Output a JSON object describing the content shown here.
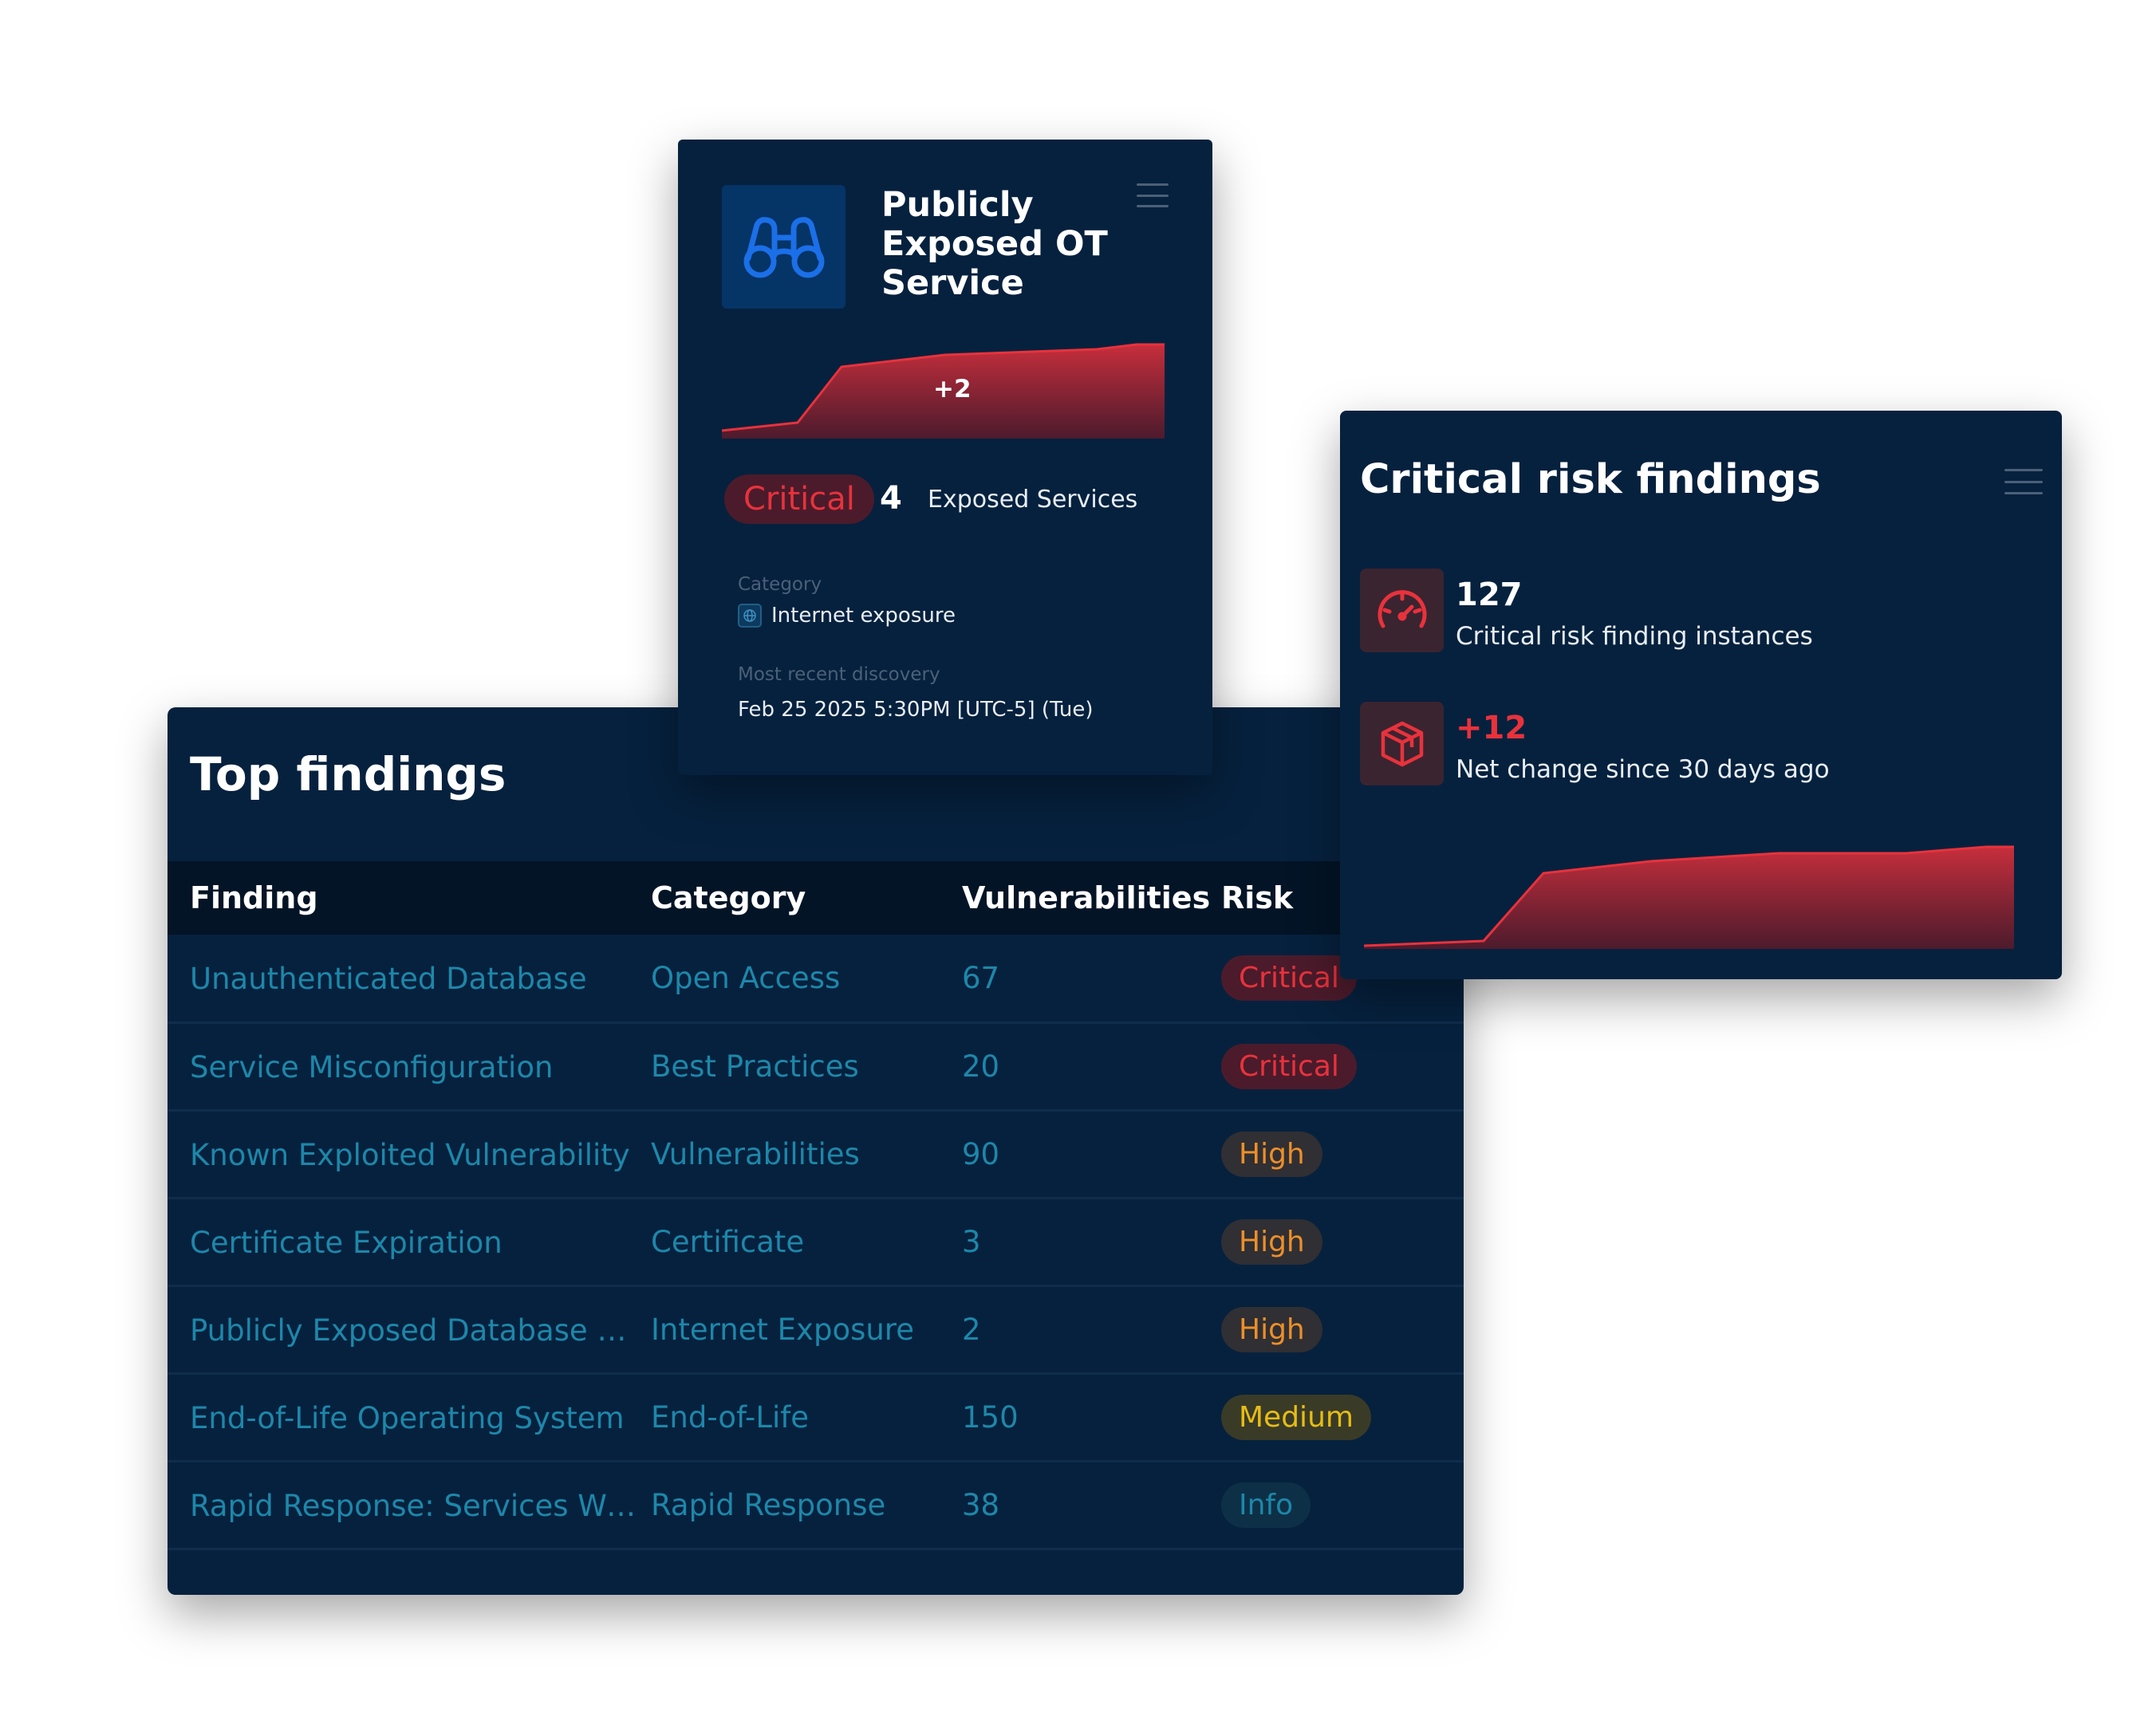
{
  "findings_card": {
    "title": "Top findings",
    "columns": [
      "Finding",
      "Category",
      "Vulnerabilities",
      "Risk"
    ],
    "rows": [
      {
        "finding": "Unauthenticated Database",
        "category": "Open Access",
        "vulnerabilities": "67",
        "risk": "Critical"
      },
      {
        "finding": "Service Misconfiguration",
        "category": "Best Practices",
        "vulnerabilities": "20",
        "risk": "Critical"
      },
      {
        "finding": "Known Exploited Vulnerability",
        "category": "Vulnerabilities",
        "vulnerabilities": "90",
        "risk": "High"
      },
      {
        "finding": "Certificate Expiration",
        "category": "Certificate",
        "vulnerabilities": "3",
        "risk": "High"
      },
      {
        "finding": "Publicly Exposed Database Server",
        "category": "Internet Exposure",
        "vulnerabilities": "2",
        "risk": "High"
      },
      {
        "finding": "End-of-Life Operating System",
        "category": "End-of-Life",
        "vulnerabilities": "150",
        "risk": "Medium"
      },
      {
        "finding": "Rapid Response: Services With P...",
        "category": "Rapid Response",
        "vulnerabilities": "38",
        "risk": "Info"
      }
    ]
  },
  "exposed_card": {
    "icon": "binoculars-icon",
    "title": "Publicly Exposed OT Service",
    "trend_delta": "+2",
    "severity": "Critical",
    "count": "4",
    "count_label": "Exposed Services",
    "category_label": "Category",
    "category_value": "Internet exposure",
    "discovery_label": "Most recent discovery",
    "discovery_value": "Feb 25 2025 5:30PM [UTC-5] (Tue)"
  },
  "critical_card": {
    "title": "Critical risk findings",
    "instances_count": "127",
    "instances_label": "Critical risk finding instances",
    "instances_icon": "speedometer-icon",
    "change_value": "+12",
    "change_label": "Net change since 30 days ago",
    "change_icon": "cube-icon"
  },
  "colors": {
    "card_bg": "#06213e",
    "critical": "#e8323c",
    "high": "#ec8f2a",
    "medium": "#e6bd15",
    "info": "#1d87a9",
    "link": "#1d87a9"
  }
}
